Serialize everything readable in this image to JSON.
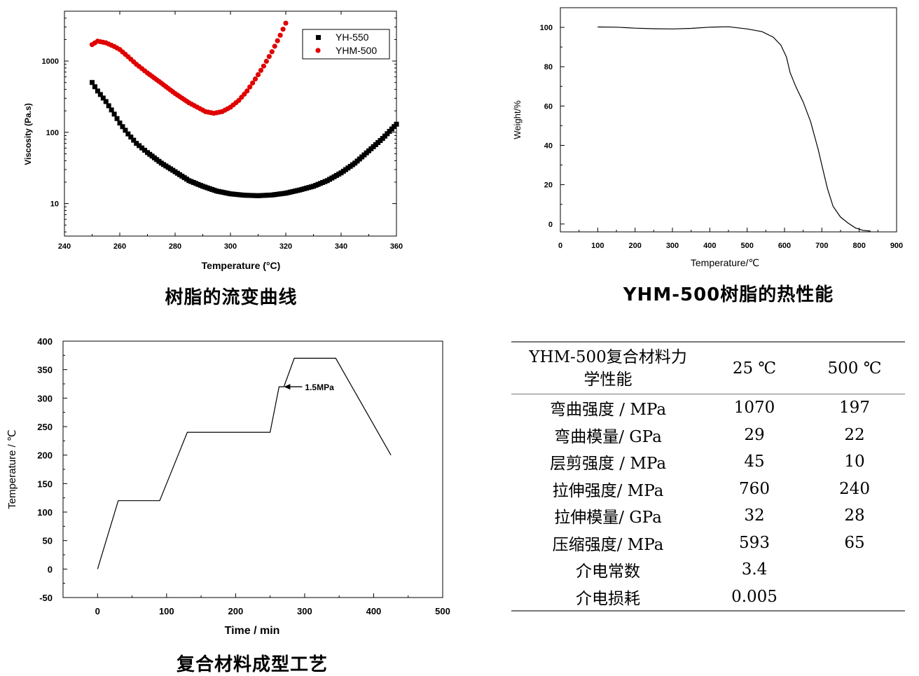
{
  "chart_data": [
    {
      "type": "scatter",
      "caption": "树脂的流变曲线",
      "xlabel": "Temperature (°C)",
      "ylabel": "Viscosity (Pa.s)",
      "xlim": [
        240,
        360
      ],
      "ylim": [
        3.5,
        5000
      ],
      "yscale": "log",
      "xticks": [
        240,
        260,
        280,
        300,
        320,
        340,
        360
      ],
      "yticks": [
        10,
        100,
        1000
      ],
      "ytick_labels": [
        "10",
        "100",
        "1000"
      ],
      "legend_position": "top-right",
      "series": [
        {
          "name": "YH-550",
          "color": "#000000",
          "marker": "square",
          "points": [
            [
              250,
              500
            ],
            [
              252,
              380
            ],
            [
              255,
              270
            ],
            [
              258,
              180
            ],
            [
              260,
              135
            ],
            [
              263,
              95
            ],
            [
              266,
              70
            ],
            [
              270,
              52
            ],
            [
              275,
              37
            ],
            [
              280,
              28
            ],
            [
              285,
              21
            ],
            [
              290,
              17.5
            ],
            [
              295,
              15
            ],
            [
              300,
              13.7
            ],
            [
              305,
              13.1
            ],
            [
              310,
              12.9
            ],
            [
              315,
              13.2
            ],
            [
              320,
              14
            ],
            [
              325,
              15.5
            ],
            [
              330,
              17.5
            ],
            [
              335,
              21
            ],
            [
              340,
              27
            ],
            [
              345,
              37
            ],
            [
              350,
              55
            ],
            [
              355,
              82
            ],
            [
              360,
              130
            ]
          ]
        },
        {
          "name": "YHM-500",
          "color": "#e00000",
          "marker": "circle",
          "points": [
            [
              250,
              1700
            ],
            [
              252,
              1900
            ],
            [
              255,
              1800
            ],
            [
              258,
              1600
            ],
            [
              260,
              1450
            ],
            [
              263,
              1150
            ],
            [
              266,
              900
            ],
            [
              270,
              680
            ],
            [
              275,
              490
            ],
            [
              280,
              350
            ],
            [
              285,
              260
            ],
            [
              288,
              225
            ],
            [
              291,
              195
            ],
            [
              294,
              185
            ],
            [
              297,
              195
            ],
            [
              300,
              225
            ],
            [
              303,
              280
            ],
            [
              306,
              380
            ],
            [
              309,
              560
            ],
            [
              312,
              850
            ],
            [
              315,
              1350
            ],
            [
              318,
              2300
            ],
            [
              320,
              3400
            ]
          ]
        }
      ]
    },
    {
      "type": "line",
      "caption": "YHM-500树脂的热性能",
      "xlabel": "Temperature/℃",
      "ylabel": "Weight/%",
      "xlim": [
        0,
        900
      ],
      "ylim": [
        -4,
        110
      ],
      "xticks": [
        0,
        100,
        200,
        300,
        400,
        500,
        600,
        700,
        800,
        900
      ],
      "yticks": [
        0,
        20,
        40,
        60,
        80,
        100
      ],
      "series": [
        {
          "color": "#000000",
          "points": [
            [
              100,
              100.2
            ],
            [
              150,
              100.1
            ],
            [
              200,
              99.6
            ],
            [
              250,
              99.3
            ],
            [
              300,
              99.2
            ],
            [
              350,
              99.5
            ],
            [
              400,
              100.1
            ],
            [
              450,
              100.3
            ],
            [
              500,
              99.2
            ],
            [
              540,
              97.8
            ],
            [
              570,
              95
            ],
            [
              590,
              91
            ],
            [
              605,
              85
            ],
            [
              615,
              77
            ],
            [
              630,
              70
            ],
            [
              650,
              62
            ],
            [
              670,
              52
            ],
            [
              690,
              38
            ],
            [
              700,
              30
            ],
            [
              715,
              18
            ],
            [
              730,
              9
            ],
            [
              750,
              3.5
            ],
            [
              770,
              0.5
            ],
            [
              790,
              -2
            ],
            [
              810,
              -3.2
            ],
            [
              830,
              -3.6
            ]
          ]
        }
      ]
    },
    {
      "type": "line",
      "caption": "复合材料成型工艺",
      "xlabel": "Time / min",
      "ylabel": "Temperature / ℃",
      "xlim": [
        -50,
        500
      ],
      "ylim": [
        -50,
        400
      ],
      "xticks": [
        0,
        100,
        200,
        300,
        400,
        500
      ],
      "yticks": [
        -50,
        0,
        50,
        100,
        150,
        200,
        250,
        300,
        350,
        400
      ],
      "annotation": {
        "text": "1.5MPa",
        "x": 265,
        "y": 320
      },
      "series": [
        {
          "color": "#000000",
          "points": [
            [
              0,
              0
            ],
            [
              30,
              120
            ],
            [
              90,
              120
            ],
            [
              130,
              240
            ],
            [
              250,
              240
            ],
            [
              263,
              320
            ],
            [
              270,
              320
            ],
            [
              285,
              370
            ],
            [
              345,
              370
            ],
            [
              425,
              200
            ]
          ]
        }
      ]
    }
  ],
  "properties_table": {
    "header": {
      "col1": "YHM-500复合材料力学性能",
      "col2": "25 ℃",
      "col3": "500 ℃"
    },
    "rows": [
      {
        "name": "弯曲强度 / MPa",
        "v25": "1070",
        "v500": "197"
      },
      {
        "name": "弯曲模量/ GPa",
        "v25": "29",
        "v500": "22"
      },
      {
        "name": "层剪强度 / MPa",
        "v25": "45",
        "v500": "10"
      },
      {
        "name": "拉伸强度/ MPa",
        "v25": "760",
        "v500": "240"
      },
      {
        "name": "拉伸模量/ GPa",
        "v25": "32",
        "v500": "28"
      },
      {
        "name": "压缩强度/ MPa",
        "v25": "593",
        "v500": "65"
      },
      {
        "name": "介电常数",
        "v25": "3.4",
        "v500": ""
      },
      {
        "name": "介电损耗",
        "v25": "0.005",
        "v500": ""
      }
    ]
  }
}
